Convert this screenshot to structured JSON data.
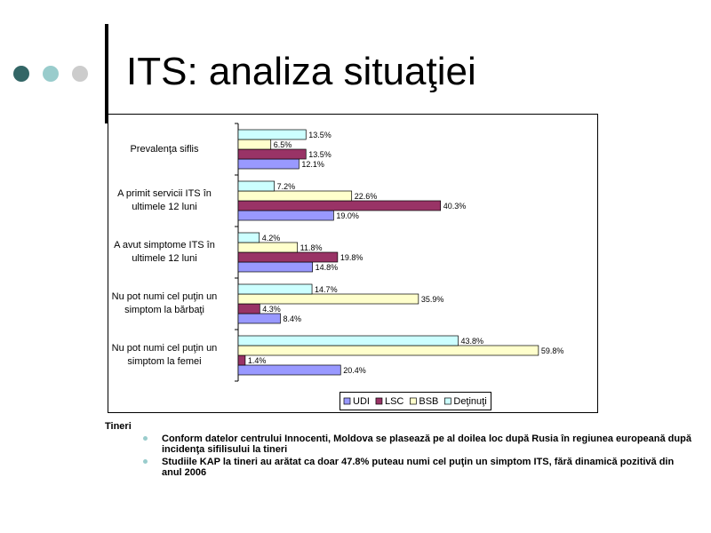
{
  "title": "ITS: analiza situaţiei",
  "chart_data": {
    "type": "hbar",
    "categories": [
      "Prevalenţa siflis",
      "A primit servicii ITS în\nultimele 12 luni",
      "A avut simptome ITS  în\nultimele 12 luni",
      "Nu pot numi cel puţin un\nsimptom la bărbaţi",
      "Nu pot numi cel puţin un\nsimptom la femei"
    ],
    "series": [
      {
        "name": "UDI",
        "color": "#9999ff",
        "values": [
          12.1,
          19.0,
          14.8,
          8.4,
          20.4
        ],
        "value_labels": [
          "12.1%",
          "19.0%",
          "14.8%",
          "8.4%",
          "20.4%"
        ]
      },
      {
        "name": "LSC",
        "color": "#993366",
        "values": [
          13.5,
          40.3,
          19.8,
          4.3,
          1.4
        ],
        "value_labels": [
          "13.5%",
          "40.3%",
          "19.8%",
          "4.3%",
          "1.4%"
        ]
      },
      {
        "name": "BSB",
        "color": "#ffffcc",
        "values": [
          6.5,
          22.6,
          11.8,
          35.9,
          59.8
        ],
        "value_labels": [
          "6.5%",
          "22.6%",
          "11.8%",
          "35.9%",
          "59.8%"
        ]
      },
      {
        "name": "Deţinuţi",
        "color": "#ccffff",
        "values": [
          13.5,
          7.2,
          4.2,
          14.7,
          43.8
        ],
        "value_labels": [
          "13.5%",
          "7.2%",
          "4.2%",
          "14.7%",
          "43.8%"
        ]
      }
    ],
    "xlim": [
      0,
      70
    ]
  },
  "text": {
    "heading": "Tineri",
    "bullets": [
      "Conform datelor centrului Innocenti, Moldova se plasează pe al doilea loc după Rusia în regiunea europeană după incidenţa sifilisului la tineri",
      "Studiile KAP la tineri au arătat ca doar 47.8% puteau numi cel puţin un simptom ITS, fără dinamică pozitivă din anul 2006"
    ]
  }
}
